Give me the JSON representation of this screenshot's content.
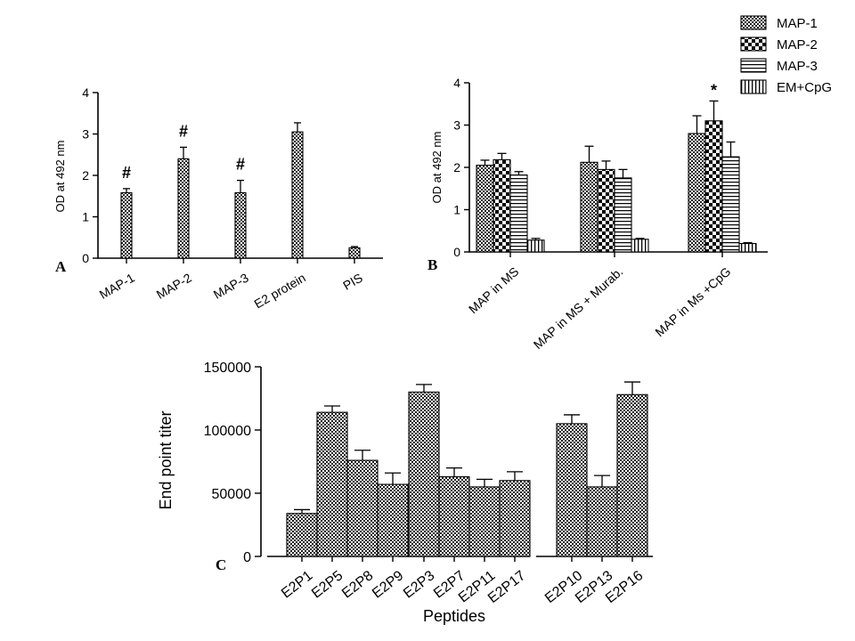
{
  "legend": {
    "entries": [
      {
        "name": "MAP-1",
        "pattern": "checker"
      },
      {
        "name": "MAP-2",
        "pattern": "bigchecker"
      },
      {
        "name": "MAP-3",
        "pattern": "hstripe"
      },
      {
        "name": "EM+CpG",
        "pattern": "vstripe"
      }
    ]
  },
  "chart_data": [
    {
      "panel": "A",
      "type": "bar",
      "ylabel": "OD at 492 nm",
      "ylim": [
        0,
        4
      ],
      "yticks": [
        "0",
        "1",
        "2",
        "3",
        "4"
      ],
      "categories": [
        "MAP-1",
        "MAP-2",
        "MAP-3",
        "E2 protein",
        "PIS"
      ],
      "values": [
        1.58,
        2.4,
        1.58,
        3.05,
        0.25
      ],
      "errors": [
        0.1,
        0.28,
        0.3,
        0.22,
        0.03
      ],
      "annotations": [
        "#",
        "#",
        "#",
        "",
        ""
      ],
      "pattern": "checker"
    },
    {
      "panel": "B",
      "type": "bar",
      "ylabel": "OD at 492 nm",
      "ylim": [
        0,
        4
      ],
      "yticks": [
        "0",
        "1",
        "2",
        "3",
        "4"
      ],
      "categories": [
        "MAP in MS",
        "MAP in MS + Murab.",
        "MAP in Ms +CpG"
      ],
      "series": [
        {
          "name": "MAP-1",
          "values": [
            2.05,
            2.12,
            2.8
          ],
          "errors": [
            0.12,
            0.38,
            0.42
          ]
        },
        {
          "name": "MAP-2",
          "values": [
            2.18,
            1.95,
            3.1
          ],
          "errors": [
            0.15,
            0.2,
            0.47
          ]
        },
        {
          "name": "MAP-3",
          "values": [
            1.82,
            1.75,
            2.25
          ],
          "errors": [
            0.08,
            0.2,
            0.35
          ]
        },
        {
          "name": "EM+CpG",
          "values": [
            0.28,
            0.3,
            0.2
          ],
          "errors": [
            0.04,
            0.02,
            0.02
          ]
        }
      ],
      "annotations": [
        {
          "category": 2,
          "series": 1,
          "text": "*"
        }
      ]
    },
    {
      "panel": "C",
      "type": "bar",
      "xlabel": "Peptides",
      "ylabel": "End point titer",
      "ylim": [
        0,
        150000
      ],
      "yticks": [
        "0",
        "50000",
        "100000",
        "150000"
      ],
      "groups": [
        {
          "categories": [
            "E2P1",
            "E2P5",
            "E2P8",
            "E2P9"
          ],
          "values": [
            34000,
            114000,
            76000,
            57000
          ],
          "errors": [
            3000,
            5000,
            8000,
            9000
          ]
        },
        {
          "categories": [
            "E2P3",
            "E2P7",
            "E2P11",
            "E2P17"
          ],
          "values": [
            130000,
            63000,
            55000,
            60000
          ],
          "errors": [
            6000,
            7000,
            6000,
            7000
          ]
        },
        {
          "categories": [
            "E2P10",
            "E2P13",
            "E2P16"
          ],
          "values": [
            105000,
            55000,
            128000
          ],
          "errors": [
            7000,
            9000,
            10000
          ]
        }
      ],
      "pattern": "checker"
    }
  ]
}
